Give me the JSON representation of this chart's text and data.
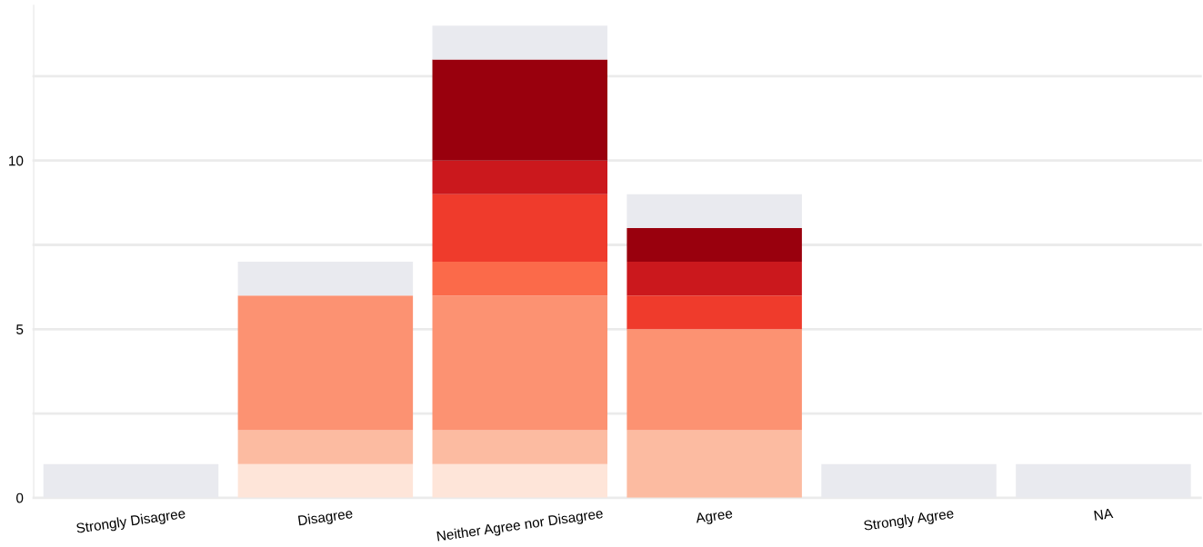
{
  "chart_data": {
    "type": "bar",
    "stacked": true,
    "categories": [
      "Strongly Disagree",
      "Disagree",
      "Neither Agree nor Disagree",
      "Agree",
      "Strongly Agree",
      "NA"
    ],
    "series": [
      {
        "color": "#fee5d9",
        "values": [
          0,
          1,
          1,
          0,
          0,
          0
        ]
      },
      {
        "color": "#fcbba1",
        "values": [
          0,
          1,
          1,
          2,
          0,
          0
        ]
      },
      {
        "color": "#fc9272",
        "values": [
          0,
          4,
          4,
          3,
          0,
          0
        ]
      },
      {
        "color": "#fb6a4a",
        "values": [
          0,
          0,
          1,
          0,
          0,
          0
        ]
      },
      {
        "color": "#ef3b2c",
        "values": [
          0,
          0,
          2,
          1,
          0,
          0
        ]
      },
      {
        "color": "#cb181d",
        "values": [
          0,
          0,
          1,
          1,
          0,
          0
        ]
      },
      {
        "color": "#99000d",
        "values": [
          0,
          0,
          3,
          1,
          0,
          0
        ]
      },
      {
        "color": "#e9eaef",
        "values": [
          1,
          1,
          1,
          1,
          1,
          1
        ]
      }
    ],
    "ylim": [
      0,
      14.6
    ],
    "yticks": [
      0,
      {
        "value": 2.5,
        "label": null
      },
      5,
      {
        "value": 7.5,
        "label": null
      },
      10,
      {
        "value": 12.5,
        "label": null
      }
    ],
    "grid": "y"
  }
}
